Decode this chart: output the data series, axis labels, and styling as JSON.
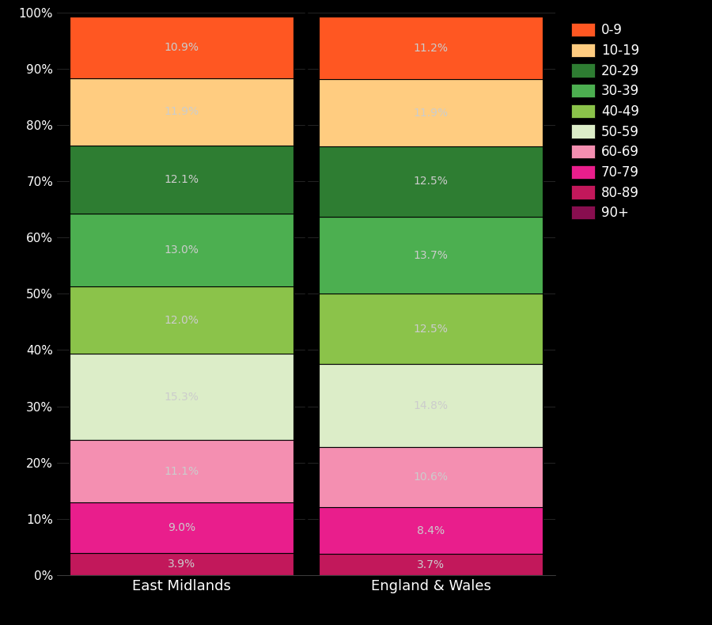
{
  "categories": [
    "East Midlands",
    "England & Wales"
  ],
  "seg_labels_bottom_to_top": [
    "80-89",
    "70-79",
    "60-69",
    "50-59",
    "40-49",
    "30-39",
    "20-29",
    "10-19",
    "0-9"
  ],
  "em_values": [
    3.9,
    9.0,
    11.1,
    15.3,
    12.0,
    13.0,
    12.1,
    11.9,
    10.9
  ],
  "ew_values": [
    3.7,
    8.4,
    10.6,
    14.8,
    12.5,
    13.7,
    12.5,
    11.9,
    11.2
  ],
  "em_labels": [
    "3.9%",
    "9.0%",
    "11.1%",
    "15.3%",
    "12.0%",
    "13.0%",
    "12.1%",
    "11.9%",
    "10.9%"
  ],
  "ew_labels": [
    "3.7%",
    "8.4%",
    "10.6%",
    "14.8%",
    "12.5%",
    "13.7%",
    "12.5%",
    "11.9%",
    "11.2%"
  ],
  "seg_colors": [
    "#C2185B",
    "#E91E8C",
    "#F48FB1",
    "#DCEDC8",
    "#8BC34A",
    "#4CAF50",
    "#2E7D32",
    "#FFCC80",
    "#FF5722"
  ],
  "legend_order": [
    "0-9",
    "10-19",
    "20-29",
    "30-39",
    "40-49",
    "50-59",
    "60-69",
    "70-79",
    "80-89",
    "90+"
  ],
  "legend_colors": {
    "0-9": "#FF5722",
    "10-19": "#FFCC80",
    "20-29": "#2E7D32",
    "30-39": "#4CAF50",
    "40-49": "#8BC34A",
    "50-59": "#DCEDC8",
    "60-69": "#F48FB1",
    "70-79": "#E91E8C",
    "80-89": "#C2185B",
    "90+": "#880E4F"
  },
  "background_color": "#000000",
  "text_color": "#cccccc",
  "figsize": [
    9.0,
    7.9
  ],
  "dpi": 100,
  "bar_positions": [
    0.25,
    0.75
  ],
  "bar_width": 0.45,
  "xlim": [
    0.0,
    1.0
  ],
  "ylim": [
    0,
    100
  ],
  "yticks": [
    0,
    10,
    20,
    30,
    40,
    50,
    60,
    70,
    80,
    90,
    100
  ],
  "ytick_labels": [
    "0%",
    "10%",
    "20%",
    "30%",
    "40%",
    "50%",
    "60%",
    "70%",
    "80%",
    "90%",
    "100%"
  ],
  "label_fontsize": 10,
  "tick_fontsize": 11,
  "xtick_fontsize": 13,
  "legend_fontsize": 12
}
